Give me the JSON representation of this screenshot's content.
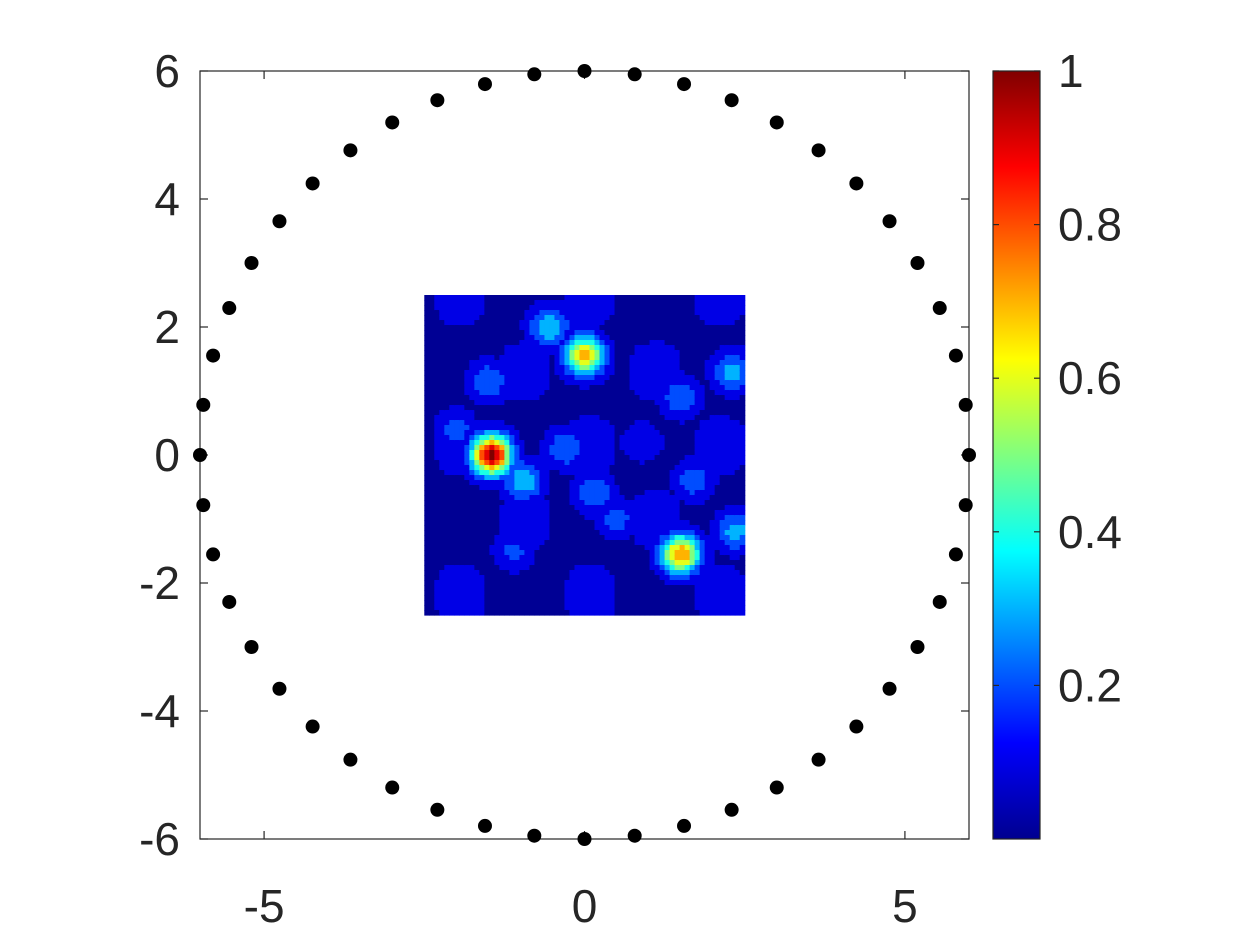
{
  "chart_data": {
    "type": "heatmap",
    "title": "",
    "xlabel": "",
    "ylabel": "",
    "xlim": [
      -6,
      6
    ],
    "ylim": [
      -6,
      6
    ],
    "xticks": [
      -5,
      0,
      5
    ],
    "yticks": [
      -6,
      -4,
      -2,
      0,
      2,
      4,
      6
    ],
    "xtick_labels": [
      "-5",
      "0",
      "5"
    ],
    "ytick_labels": [
      "-6",
      "-4",
      "-2",
      "0",
      "2",
      "4",
      "6"
    ],
    "grid": false,
    "colormap": "jet",
    "colorbar": {
      "range": [
        0,
        1
      ],
      "ticks": [
        0.2,
        0.4,
        0.6,
        0.8,
        1
      ],
      "tick_labels": [
        "0.2",
        "0.4",
        "0.6",
        "0.8",
        "1"
      ]
    },
    "heatmap_region": {
      "x": [
        -2.5,
        2.5
      ],
      "y": [
        -2.5,
        2.5
      ]
    },
    "peaks": [
      {
        "x": -1.45,
        "y": 0.0,
        "value": 1.0
      },
      {
        "x": 0.0,
        "y": 1.55,
        "value": 0.7
      },
      {
        "x": 1.5,
        "y": -1.55,
        "value": 0.75
      },
      {
        "x": -0.95,
        "y": -0.4,
        "value": 0.35
      },
      {
        "x": -0.55,
        "y": 2.0,
        "value": 0.35
      },
      {
        "x": 1.5,
        "y": 0.9,
        "value": 0.25
      },
      {
        "x": 2.3,
        "y": 1.3,
        "value": 0.3
      },
      {
        "x": -1.5,
        "y": 1.15,
        "value": 0.25
      },
      {
        "x": 0.15,
        "y": -0.6,
        "value": 0.25
      },
      {
        "x": -0.3,
        "y": 0.1,
        "value": 0.25
      },
      {
        "x": 2.35,
        "y": -1.2,
        "value": 0.3
      },
      {
        "x": 0.5,
        "y": -1.0,
        "value": 0.2
      },
      {
        "x": -1.1,
        "y": -1.5,
        "value": 0.18
      },
      {
        "x": -2.0,
        "y": 0.4,
        "value": 0.2
      },
      {
        "x": 1.7,
        "y": -0.4,
        "value": 0.22
      },
      {
        "x": 0.9,
        "y": 0.2,
        "value": 0.15
      }
    ],
    "receivers": {
      "count": 48,
      "radius": 6
    }
  }
}
